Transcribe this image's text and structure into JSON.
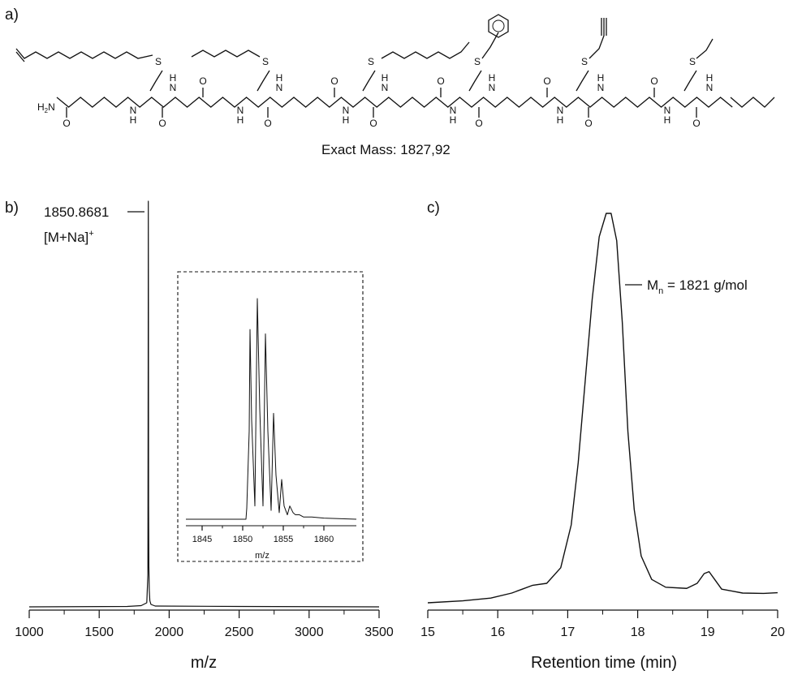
{
  "panels": {
    "a": {
      "label": "a)",
      "exact_mass_text": "Exact Mass: 1827,92",
      "atoms": {
        "h2n": "H",
        "h2n_sub": "2",
        "h2n_n": "N",
        "o": "O",
        "n": "N",
        "h": "H",
        "s": "S"
      }
    },
    "b": {
      "label": "b)",
      "peak_label": "1850.8681",
      "ion_label": "[M+Na]",
      "ion_charge": "+"
    },
    "c": {
      "label": "c)",
      "mn_symbol": "M",
      "mn_sub": "n",
      "mn_value": " = 1821 g/mol"
    }
  },
  "chart_data": [
    {
      "type": "line",
      "panel": "b",
      "title": "",
      "xlabel": "m/z",
      "ylabel": "",
      "xlim": [
        1000,
        3500
      ],
      "xticks": [
        1000,
        1500,
        2000,
        2500,
        3000,
        3500
      ],
      "grid": false,
      "series": [
        {
          "x": [
            1000,
            1700,
            1800,
            1840,
            1848,
            1850,
            1851,
            1852,
            1853,
            1855,
            1858,
            1862,
            1870,
            1900,
            2500,
            3500
          ],
          "y": [
            0.0,
            0.001,
            0.003,
            0.01,
            0.08,
            0.6,
            1.0,
            0.75,
            0.25,
            0.1,
            0.04,
            0.015,
            0.006,
            0.002,
            0.001,
            0.0
          ]
        }
      ],
      "annotations": [
        {
          "text": "1850.8681",
          "x": 1851
        }
      ],
      "inset": {
        "xlabel": "m/z",
        "xlim": [
          1843,
          1864
        ],
        "xticks": [
          1845,
          1850,
          1855,
          1860
        ],
        "series": [
          {
            "x": [
              1843,
              1849,
              1850.4,
              1850.5,
              1850.8,
              1850.9,
              1851.1,
              1851.5,
              1851.8,
              1852.1,
              1852.5,
              1852.8,
              1853.1,
              1853.5,
              1853.8,
              1854.1,
              1854.5,
              1854.8,
              1855.1,
              1855.5,
              1855.8,
              1856.2,
              1856.5,
              1857.0,
              1857.5,
              1858.5,
              1860,
              1864
            ],
            "y": [
              0.0,
              0.0,
              0.0,
              0.05,
              0.4,
              0.86,
              0.45,
              0.06,
              1.0,
              0.5,
              0.06,
              0.84,
              0.4,
              0.04,
              0.48,
              0.2,
              0.03,
              0.18,
              0.06,
              0.02,
              0.06,
              0.03,
              0.02,
              0.02,
              0.01,
              0.01,
              0.005,
              0.0
            ]
          }
        ]
      }
    },
    {
      "type": "line",
      "panel": "c",
      "title": "",
      "xlabel": "Retention time (min)",
      "ylabel": "",
      "xlim": [
        15,
        20
      ],
      "xticks": [
        15,
        16,
        17,
        18,
        19,
        20
      ],
      "grid": false,
      "series": [
        {
          "x": [
            15.0,
            15.5,
            15.9,
            16.2,
            16.35,
            16.5,
            16.7,
            16.9,
            17.05,
            17.15,
            17.25,
            17.35,
            17.45,
            17.55,
            17.62,
            17.7,
            17.78,
            17.86,
            17.95,
            18.05,
            18.2,
            18.4,
            18.7,
            18.85,
            18.95,
            19.02,
            19.1,
            19.2,
            19.35,
            19.5,
            19.8,
            20.0
          ],
          "y": [
            0.0,
            0.005,
            0.012,
            0.025,
            0.035,
            0.045,
            0.05,
            0.09,
            0.2,
            0.36,
            0.57,
            0.78,
            0.94,
            1.0,
            1.0,
            0.93,
            0.72,
            0.44,
            0.24,
            0.12,
            0.06,
            0.04,
            0.037,
            0.05,
            0.075,
            0.08,
            0.06,
            0.035,
            0.03,
            0.025,
            0.024,
            0.026
          ]
        }
      ],
      "annotations": [
        {
          "text": "Mn = 1821 g/mol",
          "x": 17.65
        }
      ]
    }
  ]
}
